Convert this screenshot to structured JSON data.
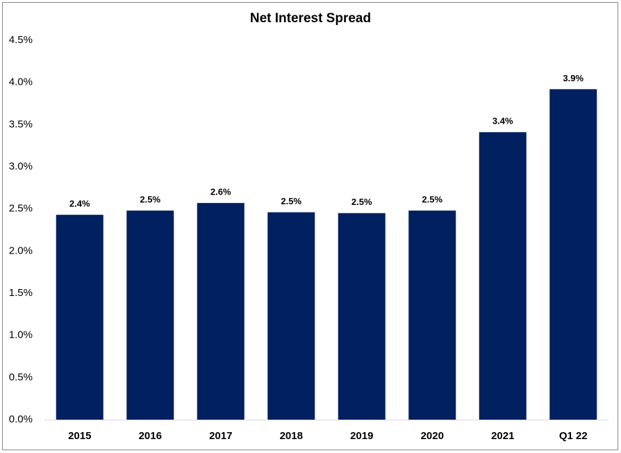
{
  "chart_data": {
    "type": "bar",
    "title": "Net Interest Spread",
    "categories": [
      "2015",
      "2016",
      "2017",
      "2018",
      "2019",
      "2020",
      "2021",
      "Q1 22"
    ],
    "values": [
      2.43,
      2.48,
      2.57,
      2.46,
      2.45,
      2.48,
      3.41,
      3.92
    ],
    "value_labels": [
      "2.4%",
      "2.5%",
      "2.6%",
      "2.5%",
      "2.5%",
      "2.5%",
      "3.4%",
      "3.9%"
    ],
    "color": "#002060",
    "ylim": [
      0,
      4.5
    ],
    "yticks": [
      {
        "value": 0,
        "label": "0.0%"
      },
      {
        "value": 0.5,
        "label": "0.5%"
      },
      {
        "value": 1,
        "label": "1.0%"
      },
      {
        "value": 1.5,
        "label": "1.5%"
      },
      {
        "value": 2,
        "label": "2.0%"
      },
      {
        "value": 2.5,
        "label": "2.5%"
      },
      {
        "value": 3,
        "label": "3.0%"
      },
      {
        "value": 3.5,
        "label": "3.5%"
      },
      {
        "value": 4,
        "label": "4.0%"
      },
      {
        "value": 4.5,
        "label": "4.5%"
      }
    ],
    "grid": false
  }
}
